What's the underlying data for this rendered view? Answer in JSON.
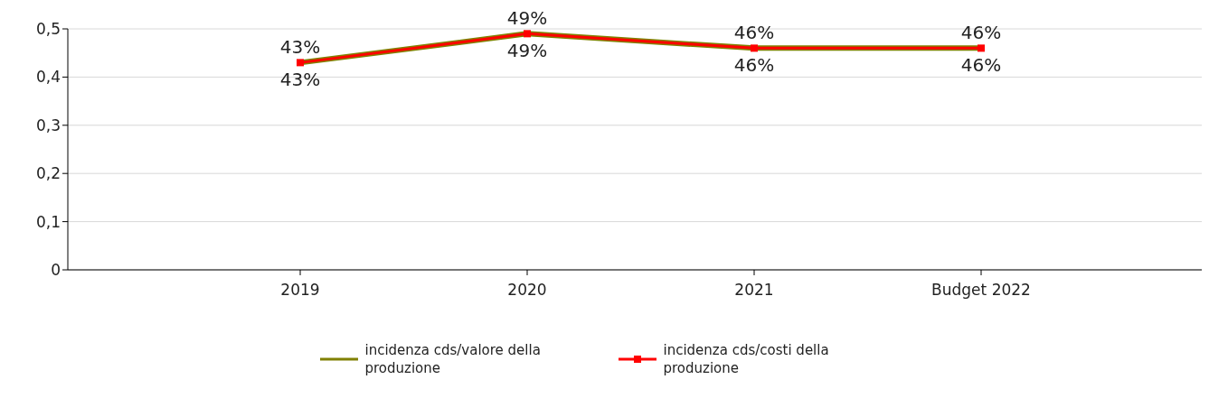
{
  "chart_data": {
    "type": "line",
    "categories": [
      "2019",
      "2020",
      "2021",
      "Budget 2022"
    ],
    "series": [
      {
        "name": "incidenza cds/valore della produzione",
        "color": "#808000",
        "values": [
          0.43,
          0.49,
          0.46,
          0.46
        ],
        "value_labels": [
          "43%",
          "49%",
          "46%",
          "46%"
        ],
        "marker": "none"
      },
      {
        "name": "incidenza cds/costi della produzione",
        "color": "#ff0000",
        "values": [
          0.43,
          0.49,
          0.46,
          0.46
        ],
        "value_labels": [
          "43%",
          "49%",
          "46%",
          "46%"
        ],
        "marker": "square"
      }
    ],
    "ylim": [
      0,
      0.5
    ],
    "yticks": [
      {
        "value": 0,
        "label": "0"
      },
      {
        "value": 0.1,
        "label": "0,1"
      },
      {
        "value": 0.2,
        "label": "0,2"
      },
      {
        "value": 0.3,
        "label": "0,3"
      },
      {
        "value": 0.4,
        "label": "0,4"
      },
      {
        "value": 0.5,
        "label": "0,5"
      }
    ],
    "grid": "y",
    "legend": "bottom"
  }
}
